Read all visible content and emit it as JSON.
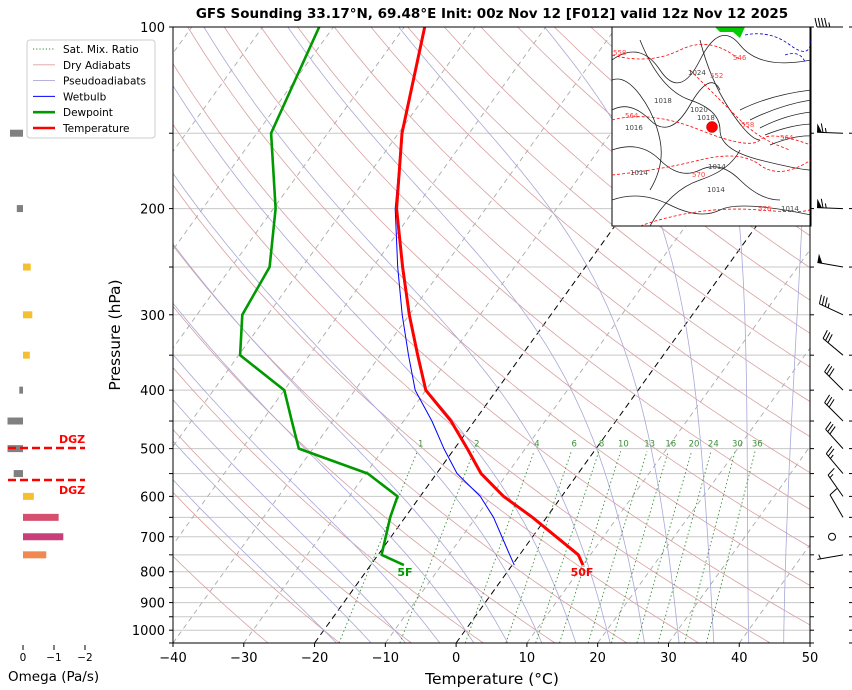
{
  "chart_data": {
    "type": "line",
    "subtype": "skew-t log-p sounding",
    "title": "GFS Sounding 33.17°N, 69.48°E Init: 00z Nov 12 [F012] valid 12z Nov 12 2025",
    "xlabel": "Temperature (°C)",
    "ylabel": "Pressure (hPa)",
    "xlim": [
      -40,
      50
    ],
    "ylim": [
      1050,
      100
    ],
    "x_ticks": [
      "−40",
      "−30",
      "−20",
      "−10",
      "0",
      "10",
      "20",
      "30",
      "40",
      "50"
    ],
    "x_tick_values": [
      -40,
      -30,
      -20,
      -10,
      0,
      10,
      20,
      30,
      40,
      50
    ],
    "y_ticks": [
      "100",
      "200",
      "300",
      "400",
      "500",
      "600",
      "700",
      "800",
      "900",
      "1000"
    ],
    "y_tick_values": [
      100,
      200,
      300,
      400,
      500,
      600,
      700,
      800,
      900,
      1000
    ],
    "grid": true,
    "legend_position": "top-left",
    "legend": [
      {
        "label": "Sat. Mix. Ratio",
        "color": "#2e8b2e",
        "style": "dotted"
      },
      {
        "label": "Dry Adiabats",
        "color": "#d9a0a0",
        "style": "solid"
      },
      {
        "label": "Pseudoadiabats",
        "color": "#a8a8d8",
        "style": "solid"
      },
      {
        "label": "Wetbulb",
        "color": "#0000ff",
        "style": "solid"
      },
      {
        "label": "Dewpoint",
        "color": "#009900",
        "style": "thick"
      },
      {
        "label": "Temperature",
        "color": "#ff0000",
        "style": "thick"
      }
    ],
    "series": [
      {
        "name": "Temperature",
        "color": "#ff0000",
        "pressure": [
          780,
          750,
          650,
          600,
          550,
          500,
          450,
          400,
          350,
          300,
          250,
          200,
          150,
          100
        ],
        "values": [
          10,
          8.3,
          -2.0,
          -8.2,
          -13.7,
          -18.2,
          -23.3,
          -30,
          -34.7,
          -40,
          -45.8,
          -52.6,
          -59.5,
          -67.1
        ]
      },
      {
        "name": "Dewpoint",
        "color": "#009900",
        "pressure": [
          780,
          750,
          650,
          600,
          550,
          500,
          450,
          400,
          350,
          300,
          250,
          200,
          150,
          100
        ],
        "values": [
          -15.3,
          -19.5,
          -22.1,
          -23.2,
          -29.7,
          -42,
          -45.8,
          -50,
          -59.8,
          -63.6,
          -64.6,
          -69.7,
          -78,
          -82
        ]
      },
      {
        "name": "Wetbulb",
        "color": "#0000ff",
        "pressure": [
          780,
          750,
          650,
          600,
          550,
          500,
          450,
          400,
          350,
          300,
          250,
          200,
          150,
          100
        ],
        "values": [
          0.3,
          -1.4,
          -7.5,
          -11.5,
          -17.1,
          -21.5,
          -26,
          -31.5,
          -36,
          -41,
          -46.5,
          -52.8,
          -59.5,
          -67.1
        ]
      }
    ],
    "surface_labels": {
      "temperature": "50F",
      "dewpoint": "5F"
    },
    "mixing_ratio_labels": [
      "1",
      "2",
      "4",
      "6",
      "8",
      "10",
      "13",
      "16",
      "20",
      "24",
      "30",
      "36"
    ],
    "mixing_ratio_values": [
      1,
      2,
      4,
      6,
      8,
      10,
      13,
      16,
      20,
      24,
      30,
      36
    ],
    "highlighted_isotherms": [
      -20,
      0
    ],
    "winds": [
      {
        "p": 100,
        "dir": 270,
        "kt": 45
      },
      {
        "p": 150,
        "dir": 272,
        "kt": 65
      },
      {
        "p": 200,
        "dir": 272,
        "kt": 65
      },
      {
        "p": 250,
        "dir": 280,
        "kt": 50
      },
      {
        "p": 300,
        "dir": 295,
        "kt": 35
      },
      {
        "p": 350,
        "dir": 310,
        "kt": 30
      },
      {
        "p": 400,
        "dir": 315,
        "kt": 30
      },
      {
        "p": 450,
        "dir": 315,
        "kt": 30
      },
      {
        "p": 500,
        "dir": 318,
        "kt": 30
      },
      {
        "p": 550,
        "dir": 320,
        "kt": 25
      },
      {
        "p": 600,
        "dir": 325,
        "kt": 15
      },
      {
        "p": 650,
        "dir": 330,
        "kt": 10
      },
      {
        "p": 700,
        "dir": 0,
        "kt": 0
      },
      {
        "p": 750,
        "dir": 260,
        "kt": 5
      }
    ],
    "omega": {
      "xlabel": "Omega (Pa/s)",
      "x_ticks": [
        "0",
        "−1",
        "−2"
      ],
      "x_tick_values": [
        0,
        -1,
        -2
      ],
      "pressure": [
        150,
        200,
        250,
        300,
        350,
        400,
        450,
        500,
        550,
        600,
        650,
        700,
        750
      ],
      "values": [
        0.42,
        0.2,
        -0.25,
        -0.3,
        -0.22,
        0.12,
        0.5,
        0.5,
        0.3,
        -0.35,
        -1.15,
        -1.3,
        -0.75
      ],
      "colors": [
        "#808080",
        "#808080",
        "#f5c030",
        "#f5c030",
        "#f5c030",
        "#808080",
        "#808080",
        "#808080",
        "#808080",
        "#f5c030",
        "#d4506e",
        "#c8407a",
        "#f08850"
      ],
      "dgz_label": "DGZ",
      "dgz_pressures": [
        500,
        562
      ]
    }
  },
  "inset_map": {
    "labels": [
      "558",
      "546",
      "1024",
      "552",
      "1018",
      "1020",
      "564",
      "1016",
      "1018",
      "558",
      "564",
      "1014",
      "1014",
      "570",
      "1014",
      "576",
      "1014"
    ]
  }
}
